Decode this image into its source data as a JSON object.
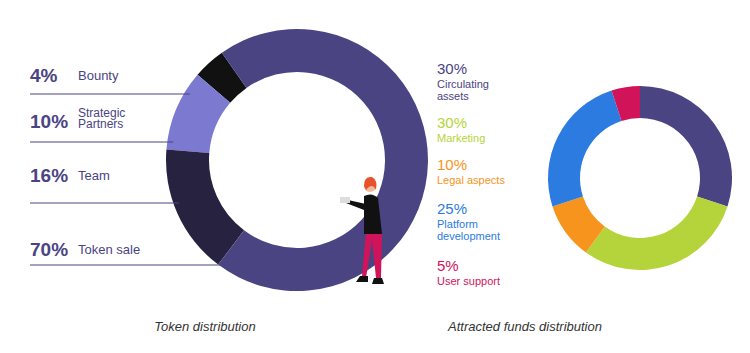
{
  "chart_data": [
    {
      "type": "donut",
      "title": "Token distribution",
      "categories": [
        "Bounty",
        "Strategic Partners",
        "Team",
        "Token sale"
      ],
      "values": [
        4,
        10,
        16,
        70
      ],
      "value_labels": [
        "4%",
        "10%",
        "16%",
        "70%"
      ],
      "colors": [
        "#111111",
        "#7b79d0",
        "#27223f",
        "#4a4483"
      ],
      "data_labels": true
    },
    {
      "type": "donut",
      "title": "Attracted funds distribution",
      "categories": [
        "Circulating assets",
        "Marketing",
        "Legal aspects",
        "Platform development",
        "User support"
      ],
      "values": [
        30,
        30,
        10,
        25,
        5
      ],
      "value_labels": [
        "30%",
        "30%",
        "10%",
        "25%",
        "5%"
      ],
      "colors": [
        "#4a4483",
        "#b5d43b",
        "#f7941d",
        "#2c7be0",
        "#d1145a"
      ],
      "data_labels": true
    }
  ]
}
